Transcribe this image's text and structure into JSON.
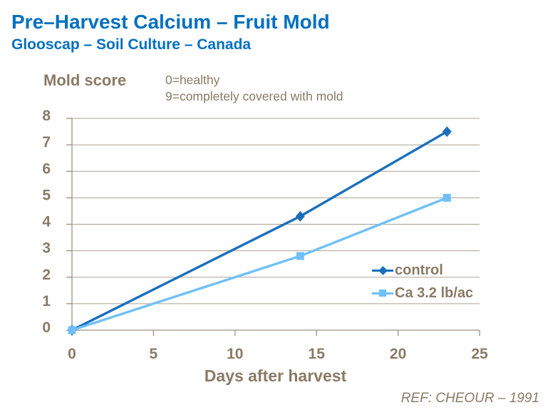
{
  "header": {
    "title": "Pre–Harvest Calcium – Fruit Mold",
    "subtitle": "Glooscap – Soil Culture – Canada"
  },
  "notes": {
    "line1": "0=healthy",
    "line2": "9=completely covered with mold"
  },
  "footer": {
    "reference": "REF: CHEOUR – 1991"
  },
  "colors": {
    "title_blue": "#0070C0",
    "text_brown": "#8A7A65",
    "gridline": "#ABA195",
    "axis": "#9A9083",
    "control_blue": "#1A6FBC",
    "calcium_blue": "#6FC0F9"
  },
  "chart_data": {
    "type": "line",
    "title": "Pre–Harvest Calcium – Fruit Mold",
    "subtitle": "Glooscap – Soil Culture – Canada",
    "xlabel": "Days after harvest",
    "ylabel": "Mold score",
    "annotation": "0=healthy, 9=completely covered with mold",
    "x": [
      0,
      14,
      23
    ],
    "series": [
      {
        "name": "control",
        "values": [
          0,
          4.3,
          7.5
        ],
        "color": "#1A6FBC",
        "marker": "diamond"
      },
      {
        "name": "Ca 3.2 lb/ac",
        "values": [
          0,
          2.8,
          5.0
        ],
        "color": "#6FC0F9",
        "marker": "square"
      }
    ],
    "xlim": [
      0,
      25
    ],
    "ylim": [
      0,
      8
    ],
    "x_ticks": [
      0,
      5,
      10,
      15,
      20,
      25
    ],
    "y_ticks": [
      0,
      1,
      2,
      3,
      4,
      5,
      6,
      7,
      8
    ],
    "grid": "horizontal",
    "legend_position": "inside-right"
  }
}
